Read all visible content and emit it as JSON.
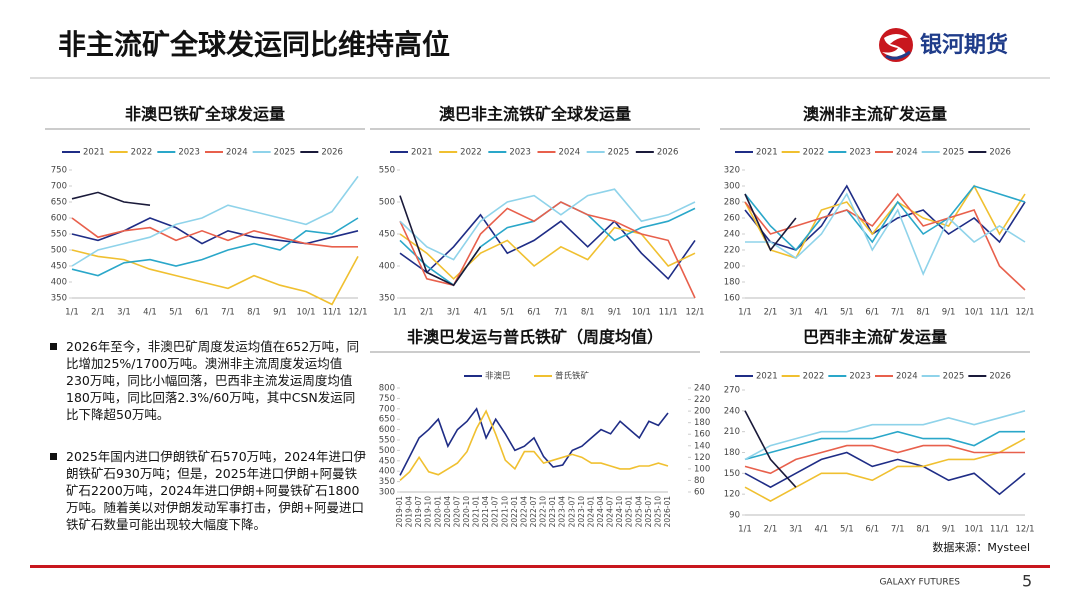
{
  "title": "非主流矿全球发运同比维持高位",
  "logo": "银河期货",
  "bullets": [
    "2026年至今，非澳巴矿周度发运均值在652万吨，同比增加25%/1700万吨。澳洲非主流周度发运均值230万吨，同比小幅回落，巴西非主流发运周度均值180万吨，同比回落2.3%/60万吨，其中CSN发运同比下降超50万吨。",
    "2025年国内进口伊朗铁矿石570万吨，2024年进口伊朗铁矿石930万吨；但是，2025年进口伊朗+阿曼铁矿石2200万吨，2024年进口伊朗+阿曼铁矿石1800万吨。随着美以对伊朗发动军事打击，伊朗+阿曼进口铁矿石数量可能出现较大幅度下降。"
  ],
  "source": "数据来源：Mysteel",
  "footer": "GALAXY FUTURES",
  "page_number": "5",
  "chart_data": [
    {
      "type": "line",
      "title": "非澳巴铁矿全球发运量",
      "categories": [
        "1/1",
        "2/1",
        "3/1",
        "4/1",
        "5/1",
        "6/1",
        "7/1",
        "8/1",
        "9/1",
        "10/1",
        "11/1",
        "12/1"
      ],
      "ylim": [
        350,
        750
      ],
      "yticks": [
        350,
        400,
        450,
        500,
        550,
        600,
        650,
        700,
        750
      ],
      "series": [
        {
          "name": "2021",
          "color": "#1f2d86",
          "values": [
            550,
            530,
            560,
            600,
            570,
            520,
            560,
            540,
            530,
            520,
            540,
            560
          ]
        },
        {
          "name": "2022",
          "color": "#f0c030",
          "values": [
            500,
            480,
            470,
            440,
            420,
            400,
            380,
            420,
            390,
            370,
            330,
            480
          ]
        },
        {
          "name": "2023",
          "color": "#2aa7c9",
          "values": [
            440,
            420,
            460,
            470,
            450,
            470,
            500,
            520,
            500,
            560,
            550,
            600
          ]
        },
        {
          "name": "2024",
          "color": "#e8604c",
          "values": [
            600,
            540,
            560,
            570,
            530,
            560,
            530,
            560,
            540,
            520,
            510,
            510
          ]
        },
        {
          "name": "2025",
          "color": "#8fd3ea",
          "values": [
            450,
            500,
            520,
            540,
            580,
            600,
            640,
            620,
            600,
            580,
            620,
            730
          ]
        },
        {
          "name": "2026",
          "color": "#1a1a3a",
          "values": [
            660,
            680,
            650,
            640,
            null,
            null,
            null,
            null,
            null,
            null,
            null,
            null
          ]
        }
      ]
    },
    {
      "type": "line",
      "title": "澳巴非主流铁矿全球发运量",
      "categories": [
        "1/1",
        "2/1",
        "3/1",
        "4/1",
        "5/1",
        "6/1",
        "7/1",
        "8/1",
        "9/1",
        "10/1",
        "11/1",
        "12/1"
      ],
      "ylim": [
        350,
        550
      ],
      "yticks": [
        350,
        400,
        450,
        500,
        550
      ],
      "series": [
        {
          "name": "2021",
          "color": "#1f2d86",
          "values": [
            420,
            390,
            430,
            480,
            420,
            440,
            470,
            430,
            470,
            420,
            380,
            440
          ]
        },
        {
          "name": "2022",
          "color": "#f0c030",
          "values": [
            450,
            420,
            380,
            420,
            440,
            400,
            430,
            410,
            460,
            450,
            400,
            420
          ]
        },
        {
          "name": "2023",
          "color": "#2aa7c9",
          "values": [
            440,
            400,
            370,
            430,
            460,
            470,
            500,
            480,
            440,
            460,
            470,
            490
          ]
        },
        {
          "name": "2024",
          "color": "#e8604c",
          "values": [
            470,
            380,
            370,
            450,
            490,
            470,
            500,
            480,
            470,
            450,
            440,
            350
          ]
        },
        {
          "name": "2025",
          "color": "#8fd3ea",
          "values": [
            470,
            430,
            410,
            470,
            500,
            510,
            480,
            510,
            520,
            470,
            480,
            500
          ]
        },
        {
          "name": "2026",
          "color": "#1a1a3a",
          "values": [
            510,
            390,
            370,
            430,
            null,
            null,
            null,
            null,
            null,
            null,
            null,
            null
          ]
        }
      ]
    },
    {
      "type": "line",
      "title": "澳洲非主流矿发运量",
      "categories": [
        "1/1",
        "2/1",
        "3/1",
        "4/1",
        "5/1",
        "6/1",
        "7/1",
        "8/1",
        "9/1",
        "10/1",
        "11/1",
        "12/1"
      ],
      "ylim": [
        160,
        320
      ],
      "yticks": [
        160,
        180,
        200,
        220,
        240,
        260,
        280,
        300,
        320
      ],
      "series": [
        {
          "name": "2021",
          "color": "#1f2d86",
          "values": [
            270,
            230,
            220,
            250,
            300,
            240,
            260,
            270,
            240,
            260,
            230,
            280
          ]
        },
        {
          "name": "2022",
          "color": "#f0c030",
          "values": [
            280,
            220,
            210,
            270,
            280,
            240,
            280,
            260,
            250,
            300,
            240,
            290
          ]
        },
        {
          "name": "2023",
          "color": "#2aa7c9",
          "values": [
            290,
            250,
            220,
            260,
            270,
            230,
            280,
            240,
            260,
            300,
            290,
            280
          ]
        },
        {
          "name": "2024",
          "color": "#e8604c",
          "values": [
            280,
            240,
            250,
            260,
            270,
            250,
            290,
            250,
            260,
            270,
            200,
            170
          ]
        },
        {
          "name": "2025",
          "color": "#8fd3ea",
          "values": [
            230,
            230,
            210,
            240,
            290,
            220,
            270,
            190,
            260,
            230,
            250,
            230
          ]
        },
        {
          "name": "2026",
          "color": "#1a1a3a",
          "values": [
            290,
            220,
            260,
            null,
            null,
            null,
            null,
            null,
            null,
            null,
            null,
            null
          ]
        }
      ]
    },
    {
      "type": "line",
      "title": "非澳巴发运与普氏铁矿（周度均值）",
      "categories": [
        "2019-01",
        "2019-04",
        "2019-07",
        "2019-10",
        "2020-01",
        "2020-04",
        "2020-07",
        "2020-10",
        "2021-01",
        "2021-04",
        "2021-07",
        "2021-10",
        "2022-01",
        "2022-04",
        "2022-07",
        "2022-10",
        "2023-01",
        "2023-04",
        "2023-07",
        "2023-10",
        "2024-01",
        "2024-04",
        "2024-07",
        "2024-10",
        "2025-01",
        "2025-04",
        "2025-07",
        "2025-10",
        "2026-01"
      ],
      "ylim": [
        300,
        800
      ],
      "yticks": [
        300,
        350,
        400,
        450,
        500,
        550,
        600,
        650,
        700,
        750,
        800
      ],
      "y2lim": [
        60,
        240
      ],
      "y2ticks": [
        60,
        80,
        100,
        120,
        140,
        160,
        180,
        200,
        220,
        240
      ],
      "series": [
        {
          "name": "非澳巴",
          "color": "#1f2d86",
          "values": [
            380,
            470,
            560,
            600,
            650,
            520,
            600,
            640,
            700,
            560,
            650,
            580,
            500,
            520,
            560,
            470,
            420,
            430,
            500,
            520,
            560,
            600,
            580,
            640,
            600,
            560,
            640,
            620,
            680
          ]
        },
        {
          "name": "普氏铁矿",
          "color": "#f0c030",
          "axis": "y2",
          "values": [
            80,
            95,
            120,
            95,
            90,
            100,
            110,
            130,
            170,
            200,
            160,
            115,
            100,
            130,
            130,
            110,
            115,
            120,
            125,
            120,
            110,
            110,
            105,
            100,
            100,
            105,
            105,
            110,
            105
          ]
        }
      ]
    },
    {
      "type": "line",
      "title": "巴西非主流矿发运量",
      "categories": [
        "1/1",
        "2/1",
        "3/1",
        "4/1",
        "5/1",
        "6/1",
        "7/1",
        "8/1",
        "9/1",
        "10/1",
        "11/1",
        "12/1"
      ],
      "ylim": [
        90,
        270
      ],
      "yticks": [
        90,
        120,
        150,
        180,
        210,
        240,
        270
      ],
      "series": [
        {
          "name": "2021",
          "color": "#1f2d86",
          "values": [
            150,
            130,
            150,
            170,
            180,
            160,
            170,
            160,
            140,
            150,
            120,
            150
          ]
        },
        {
          "name": "2022",
          "color": "#f0c030",
          "values": [
            130,
            110,
            130,
            150,
            150,
            140,
            160,
            160,
            170,
            170,
            180,
            200
          ]
        },
        {
          "name": "2023",
          "color": "#2aa7c9",
          "values": [
            170,
            180,
            190,
            200,
            200,
            200,
            210,
            200,
            200,
            190,
            210,
            210
          ]
        },
        {
          "name": "2024",
          "color": "#e8604c",
          "values": [
            160,
            150,
            170,
            180,
            190,
            190,
            180,
            190,
            190,
            180,
            180,
            180
          ]
        },
        {
          "name": "2025",
          "color": "#8fd3ea",
          "values": [
            170,
            190,
            200,
            210,
            210,
            220,
            220,
            220,
            230,
            220,
            230,
            240
          ]
        },
        {
          "name": "2026",
          "color": "#1a1a3a",
          "values": [
            240,
            170,
            130,
            null,
            null,
            null,
            null,
            null,
            null,
            null,
            null,
            null
          ]
        }
      ]
    }
  ]
}
